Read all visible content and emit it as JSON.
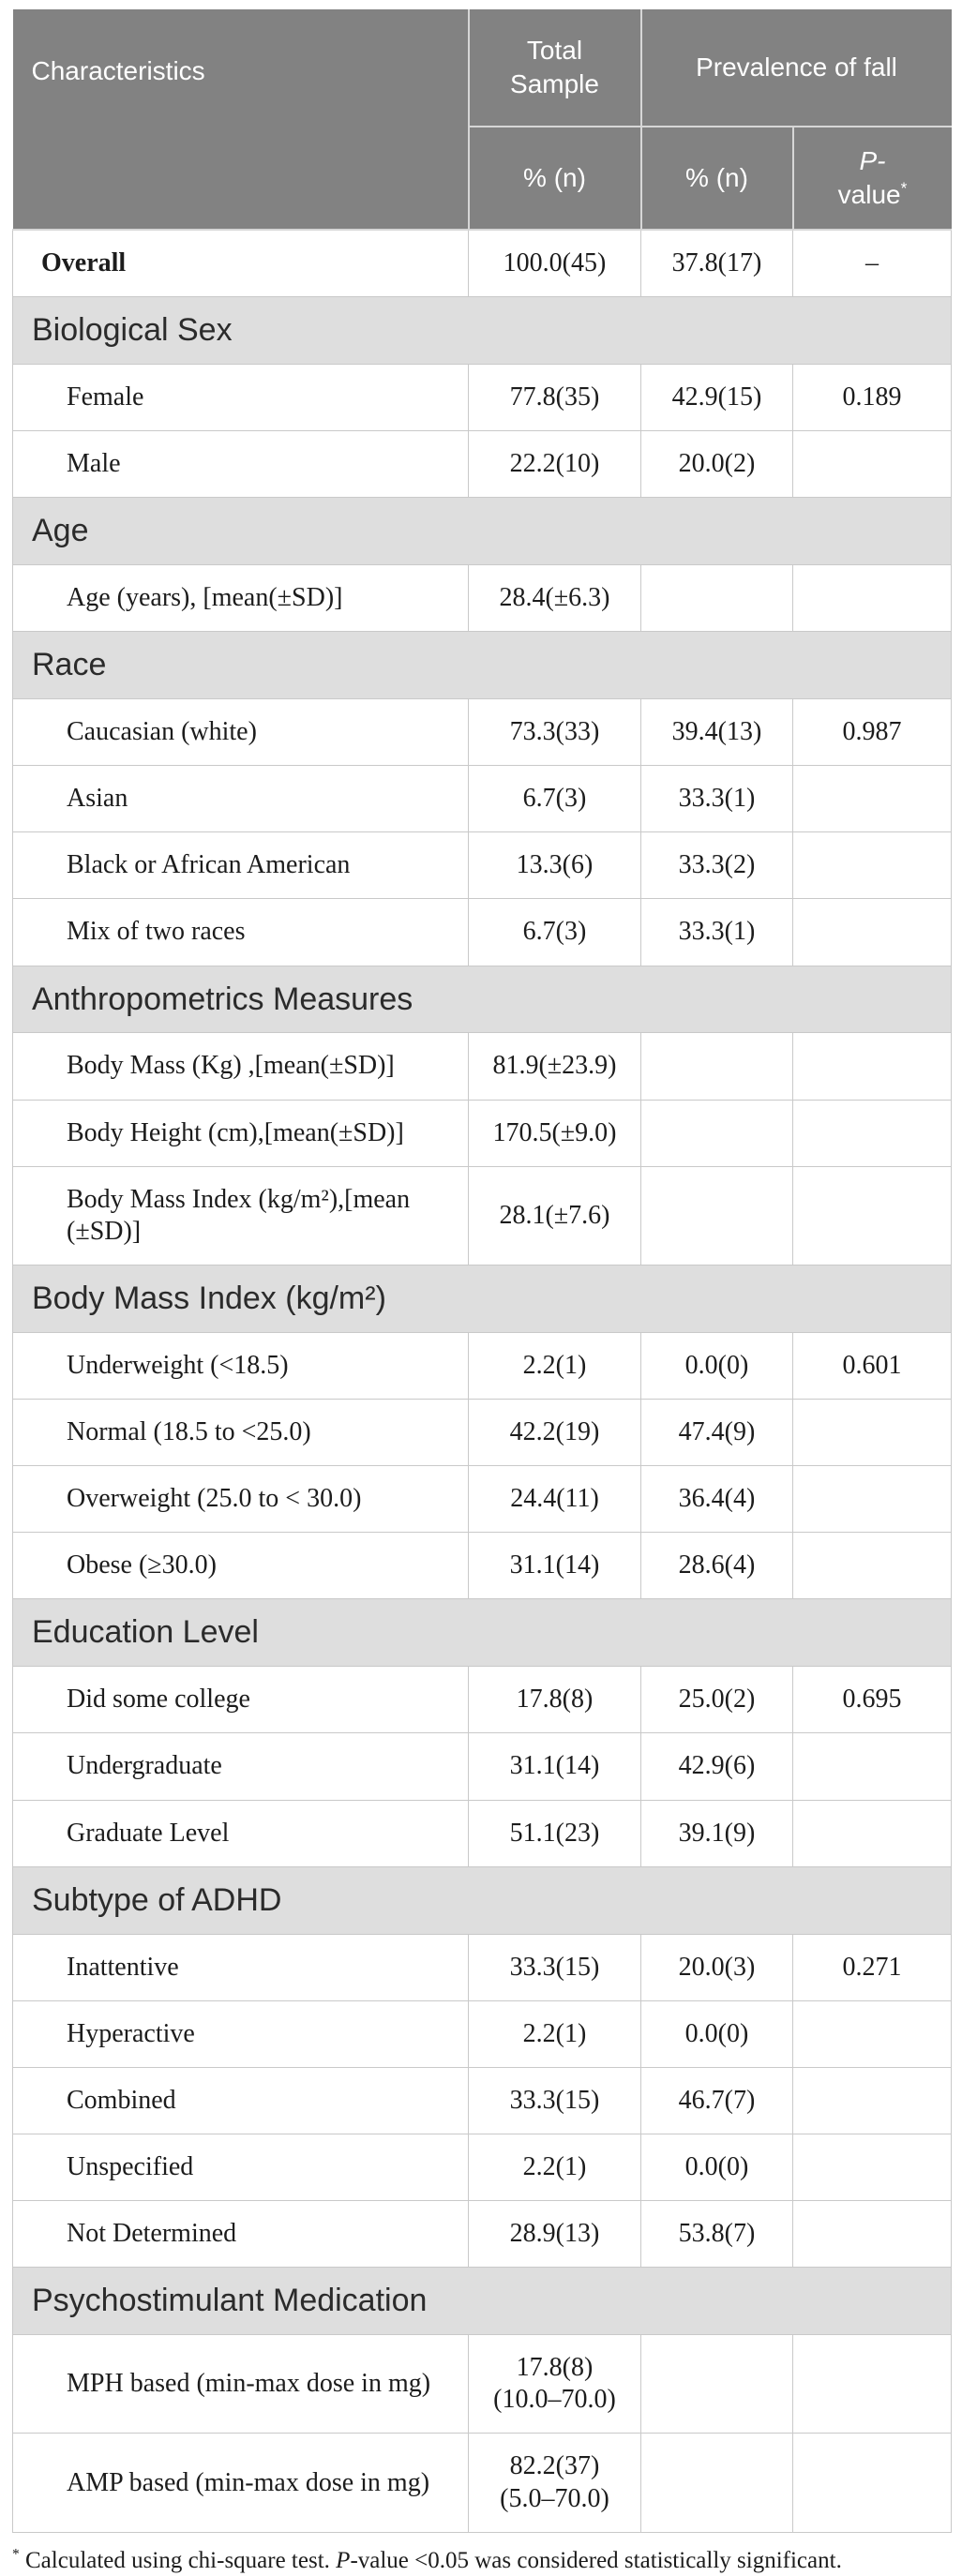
{
  "colors": {
    "header_bg": "#828282",
    "section_bg": "#dedede",
    "header_text": "#ffffff",
    "body_border": "#c9c9c9",
    "header_border": "#d6d6d6"
  },
  "table": {
    "header": {
      "characteristics": "Characteristics",
      "total_sample": "Total Sample",
      "prevalence": "Prevalence of fall",
      "total_unit": "% (n)",
      "fall_unit": "% (n)",
      "p_italic": "P-",
      "p_rest": "value",
      "p_marker": "*"
    },
    "rows": [
      {
        "type": "data",
        "label": "Overall",
        "bold": true,
        "indent": false,
        "total": "100.0(45)",
        "fall": "37.8(17)",
        "p": "–"
      },
      {
        "type": "section",
        "label": "Biological Sex"
      },
      {
        "type": "data",
        "label": "Female",
        "indent": true,
        "total": "77.8(35)",
        "fall": "42.9(15)",
        "p": "0.189"
      },
      {
        "type": "data",
        "label": "Male",
        "indent": true,
        "total": "22.2(10)",
        "fall": "20.0(2)",
        "p": ""
      },
      {
        "type": "section",
        "label": "Age"
      },
      {
        "type": "data",
        "label": "Age (years), [mean(±SD)]",
        "indent": true,
        "total": "28.4(±6.3)",
        "fall": "",
        "p": ""
      },
      {
        "type": "section",
        "label": "Race"
      },
      {
        "type": "data",
        "label": "Caucasian (white)",
        "indent": true,
        "total": "73.3(33)",
        "fall": "39.4(13)",
        "p": "0.987"
      },
      {
        "type": "data",
        "label": "Asian",
        "indent": true,
        "total": "6.7(3)",
        "fall": "33.3(1)",
        "p": ""
      },
      {
        "type": "data",
        "label": "Black or African American",
        "indent": true,
        "total": "13.3(6)",
        "fall": "33.3(2)",
        "p": ""
      },
      {
        "type": "data",
        "label": "Mix of two races",
        "indent": true,
        "total": "6.7(3)",
        "fall": "33.3(1)",
        "p": ""
      },
      {
        "type": "section",
        "label": "Anthropometrics Measures"
      },
      {
        "type": "data",
        "label": "Body Mass (Kg) ,[mean(±SD)]",
        "indent": true,
        "total": "81.9(±23.9)",
        "fall": "",
        "p": ""
      },
      {
        "type": "data",
        "label": "Body Height (cm),[mean(±SD)]",
        "indent": true,
        "total": "170.5(±9.0)",
        "fall": "",
        "p": ""
      },
      {
        "type": "data",
        "label": "Body Mass Index (kg/m²),[mean (±SD)]",
        "indent": true,
        "total": "28.1(±7.6)",
        "fall": "",
        "p": ""
      },
      {
        "type": "section",
        "label": "Body Mass Index (kg/m²)"
      },
      {
        "type": "data",
        "label": "Underweight (<18.5)",
        "indent": true,
        "total": "2.2(1)",
        "fall": "0.0(0)",
        "p": "0.601"
      },
      {
        "type": "data",
        "label": "Normal (18.5 to <25.0)",
        "indent": true,
        "total": "42.2(19)",
        "fall": "47.4(9)",
        "p": ""
      },
      {
        "type": "data",
        "label": "Overweight (25.0 to < 30.0)",
        "indent": true,
        "total": "24.4(11)",
        "fall": "36.4(4)",
        "p": ""
      },
      {
        "type": "data",
        "label": "Obese (≥30.0)",
        "indent": true,
        "total": "31.1(14)",
        "fall": "28.6(4)",
        "p": ""
      },
      {
        "type": "section",
        "label": "Education Level"
      },
      {
        "type": "data",
        "label": "Did some college",
        "indent": true,
        "total": "17.8(8)",
        "fall": "25.0(2)",
        "p": "0.695"
      },
      {
        "type": "data",
        "label": "Undergraduate",
        "indent": true,
        "total": "31.1(14)",
        "fall": "42.9(6)",
        "p": ""
      },
      {
        "type": "data",
        "label": "Graduate Level",
        "indent": true,
        "total": "51.1(23)",
        "fall": "39.1(9)",
        "p": ""
      },
      {
        "type": "section",
        "label": "Subtype of ADHD"
      },
      {
        "type": "data",
        "label": "Inattentive",
        "indent": true,
        "total": "33.3(15)",
        "fall": "20.0(3)",
        "p": "0.271"
      },
      {
        "type": "data",
        "label": "Hyperactive",
        "indent": true,
        "total": "2.2(1)",
        "fall": "0.0(0)",
        "p": ""
      },
      {
        "type": "data",
        "label": "Combined",
        "indent": true,
        "total": "33.3(15)",
        "fall": "46.7(7)",
        "p": ""
      },
      {
        "type": "data",
        "label": "Unspecified",
        "indent": true,
        "total": "2.2(1)",
        "fall": "0.0(0)",
        "p": ""
      },
      {
        "type": "data",
        "label": "Not Determined",
        "indent": true,
        "total": "28.9(13)",
        "fall": "53.8(7)",
        "p": ""
      },
      {
        "type": "section",
        "label": "Psychostimulant Medication"
      },
      {
        "type": "data",
        "label": "MPH based (min-max dose in mg)",
        "indent": true,
        "total": "17.8(8)\n(10.0–70.0)",
        "fall": "",
        "p": ""
      },
      {
        "type": "data",
        "label": "AMP based (min-max dose in mg)",
        "indent": true,
        "total": "82.2(37)\n(5.0–70.0)",
        "fall": "",
        "p": ""
      }
    ]
  },
  "footnote": {
    "marker": "*",
    "pre": " Calculated using chi-square test. ",
    "p_italic": "P",
    "post": "-value <0.05 was considered statistically significant."
  }
}
